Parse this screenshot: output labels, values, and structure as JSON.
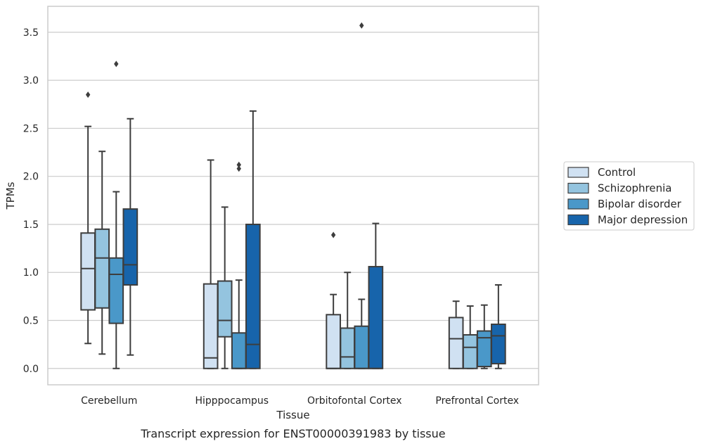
{
  "chart_data": {
    "type": "box",
    "title": "",
    "caption": "Transcript expression for ENST00000391983 by tissue",
    "xlabel": "Tissue",
    "ylabel": "TPMs",
    "ylim": [
      -0.17,
      3.77
    ],
    "yticks": [
      "0.0",
      "0.5",
      "1.0",
      "1.5",
      "2.0",
      "2.5",
      "3.0",
      "3.5"
    ],
    "categories": [
      "Cerebellum",
      "Hipppocampus",
      "Orbitofontal Cortex",
      "Prefrontal Cortex"
    ],
    "grid": true,
    "legend_position": "outside-right",
    "series": [
      {
        "name": "Control",
        "color": "#d0e1f2",
        "boxes": [
          {
            "whislo": 0.26,
            "q1": 0.61,
            "med": 1.04,
            "q3": 1.41,
            "whishi": 2.52,
            "fliers": [
              2.85
            ]
          },
          {
            "whislo": 0.0,
            "q1": 0.0,
            "med": 0.11,
            "q3": 0.88,
            "whishi": 2.17,
            "fliers": []
          },
          {
            "whislo": 0.0,
            "q1": 0.0,
            "med": 0.0,
            "q3": 0.56,
            "whishi": 0.77,
            "fliers": [
              1.39
            ]
          },
          {
            "whislo": 0.0,
            "q1": 0.0,
            "med": 0.31,
            "q3": 0.53,
            "whishi": 0.7,
            "fliers": []
          }
        ]
      },
      {
        "name": "Schizophrenia",
        "color": "#94c4df",
        "boxes": [
          {
            "whislo": 0.15,
            "q1": 0.63,
            "med": 1.15,
            "q3": 1.45,
            "whishi": 2.26,
            "fliers": []
          },
          {
            "whislo": 0.0,
            "q1": 0.33,
            "med": 0.5,
            "q3": 0.91,
            "whishi": 1.68,
            "fliers": []
          },
          {
            "whislo": 0.0,
            "q1": 0.0,
            "med": 0.12,
            "q3": 0.42,
            "whishi": 1.0,
            "fliers": []
          },
          {
            "whislo": 0.0,
            "q1": 0.0,
            "med": 0.22,
            "q3": 0.35,
            "whishi": 0.65,
            "fliers": []
          }
        ]
      },
      {
        "name": "Bipolar disorder",
        "color": "#4a98c9",
        "boxes": [
          {
            "whislo": 0.0,
            "q1": 0.47,
            "med": 0.98,
            "q3": 1.15,
            "whishi": 1.84,
            "fliers": [
              3.17
            ]
          },
          {
            "whislo": 0.0,
            "q1": 0.0,
            "med": 0.0,
            "q3": 0.37,
            "whishi": 0.92,
            "fliers": [
              2.08,
              2.12
            ]
          },
          {
            "whislo": 0.0,
            "q1": 0.0,
            "med": 0.0,
            "q3": 0.44,
            "whishi": 0.72,
            "fliers": [
              3.57
            ]
          },
          {
            "whislo": 0.0,
            "q1": 0.02,
            "med": 0.32,
            "q3": 0.39,
            "whishi": 0.66,
            "fliers": []
          }
        ]
      },
      {
        "name": "Major depression",
        "color": "#1764ab",
        "boxes": [
          {
            "whislo": 0.14,
            "q1": 0.87,
            "med": 1.08,
            "q3": 1.66,
            "whishi": 2.6,
            "fliers": []
          },
          {
            "whislo": 0.0,
            "q1": 0.0,
            "med": 0.25,
            "q3": 1.5,
            "whishi": 2.68,
            "fliers": []
          },
          {
            "whislo": 0.0,
            "q1": 0.0,
            "med": 0.0,
            "q3": 1.06,
            "whishi": 1.51,
            "fliers": []
          },
          {
            "whislo": 0.0,
            "q1": 0.05,
            "med": 0.34,
            "q3": 0.46,
            "whishi": 0.87,
            "fliers": []
          }
        ]
      }
    ]
  }
}
